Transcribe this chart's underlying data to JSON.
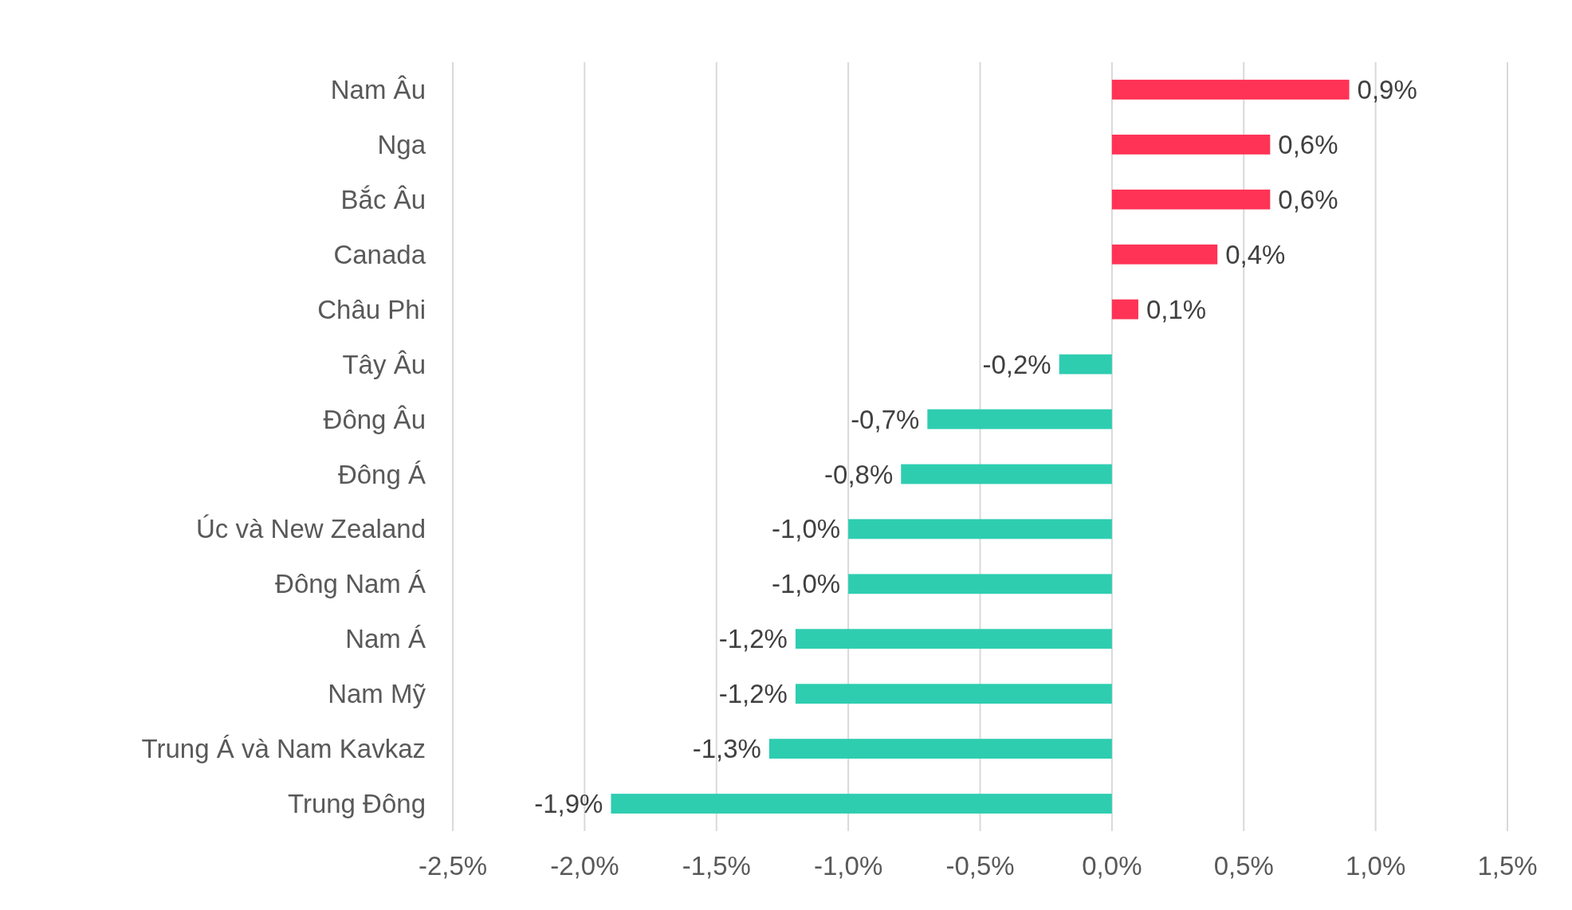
{
  "chart_data": {
    "type": "bar",
    "orientation": "horizontal",
    "categories": [
      "Nam Âu",
      "Nga",
      "Bắc Âu",
      "Canada",
      "Châu Phi",
      "Tây Âu",
      "Đông Âu",
      "Đông Á",
      "Úc và New Zealand",
      "Đông Nam Á",
      "Nam Á",
      "Nam Mỹ",
      "Trung Á và Nam Kavkaz",
      "Trung Đông"
    ],
    "values": [
      0.9,
      0.6,
      0.6,
      0.4,
      0.1,
      -0.2,
      -0.7,
      -0.8,
      -1.0,
      -1.0,
      -1.2,
      -1.2,
      -1.3,
      -1.9
    ],
    "colors": [
      "#ff3355",
      "#ff3355",
      "#ff3355",
      "#ff3355",
      "#ff3355",
      "#2ecdb0",
      "#2ecdb0",
      "#2ecdb0",
      "#2ecdb0",
      "#2ecdb0",
      "#2ecdb0",
      "#2ecdb0",
      "#2ecdb0",
      "#2ecdb0"
    ],
    "value_labels": [
      "0,9%",
      "0,6%",
      "0,6%",
      "0,4%",
      "0,1%",
      "-0,2%",
      "-0,7%",
      "-0,8%",
      "-1,0%",
      "-1,0%",
      "-1,2%",
      "-1,2%",
      "-1,3%",
      "-1,9%"
    ],
    "xlim": [
      -2.5,
      1.5
    ],
    "xticks": [
      {
        "value": -2.5,
        "label": "-2,5%"
      },
      {
        "value": -2.0,
        "label": "-2,0%"
      },
      {
        "value": -1.5,
        "label": "-1,5%"
      },
      {
        "value": -1.0,
        "label": "-1,0%"
      },
      {
        "value": -0.5,
        "label": "-0,5%"
      },
      {
        "value": 0,
        "label": "0,0%"
      },
      {
        "value": 0.5,
        "label": "0,5%"
      },
      {
        "value": 1.0,
        "label": "1,0%"
      },
      {
        "value": 1.5,
        "label": "1,5%"
      }
    ],
    "grid": "x"
  }
}
